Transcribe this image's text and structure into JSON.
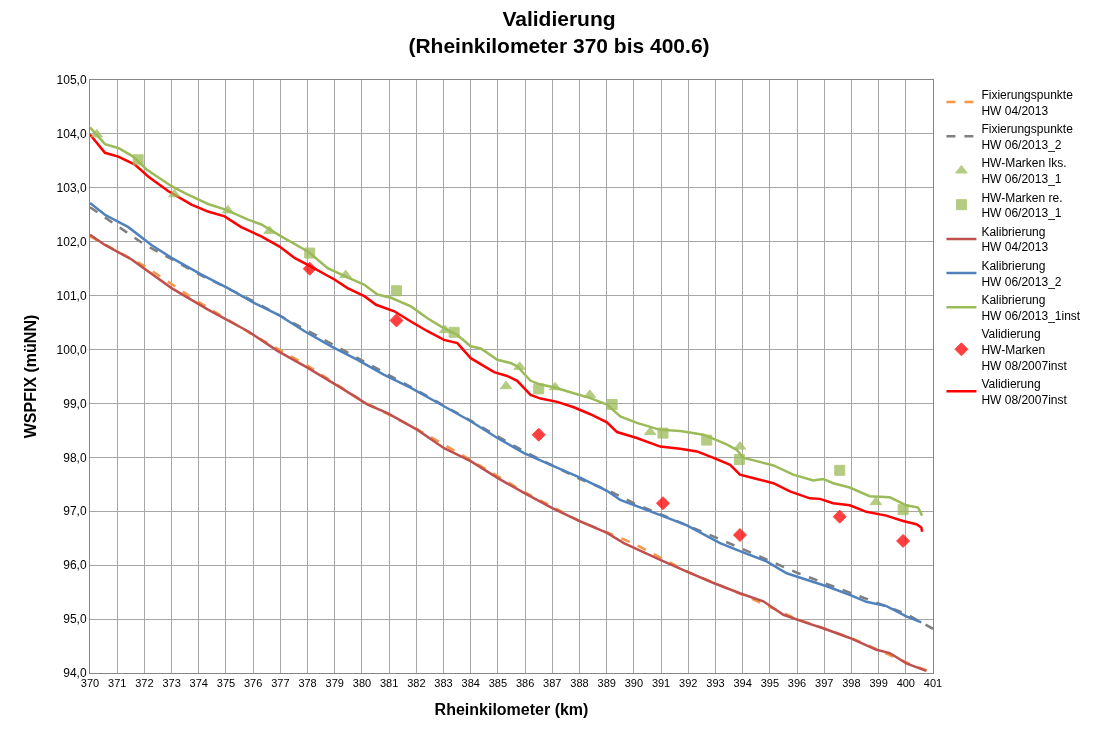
{
  "chart_data": {
    "type": "line",
    "title": "Validierung\n(Rheinkilometer 370 bis 400.6)",
    "xlabel": "Rheinkilometer (km)",
    "ylabel": "WSPFIX (müNN)",
    "xlim": [
      370,
      401
    ],
    "xticks": [
      370,
      371,
      372,
      373,
      374,
      375,
      376,
      377,
      378,
      379,
      380,
      381,
      382,
      383,
      384,
      385,
      386,
      387,
      388,
      389,
      390,
      391,
      392,
      393,
      394,
      395,
      396,
      397,
      398,
      399,
      400,
      401
    ],
    "ylim": [
      94,
      105
    ],
    "yticks": [
      {
        "value": 94,
        "label": "94,0"
      },
      {
        "value": 95,
        "label": "95,0"
      },
      {
        "value": 96,
        "label": "96,0"
      },
      {
        "value": 97,
        "label": "97,0"
      },
      {
        "value": 98,
        "label": "98,0"
      },
      {
        "value": 99,
        "label": "99,0"
      },
      {
        "value": 100,
        "label": "100,0"
      },
      {
        "value": 101,
        "label": "101,0"
      },
      {
        "value": 102,
        "label": "102,0"
      },
      {
        "value": 103,
        "label": "103,0"
      },
      {
        "value": 104,
        "label": "104,0"
      },
      {
        "value": 105,
        "label": "105,0"
      }
    ],
    "grid": true,
    "legend": "right",
    "series": [
      {
        "name": "Fixierungspunkte\nHW 04/2013",
        "line_style": "dashed",
        "color": "#f79646",
        "x": [
          370,
          372,
          374,
          375.9,
          378,
          380,
          382,
          384,
          386,
          388,
          390,
          392,
          394,
          396,
          398,
          400,
          400.8
        ],
        "values": [
          102.1,
          101.55,
          100.88,
          100.3,
          99.7,
          99.05,
          98.53,
          97.95,
          97.35,
          96.82,
          96.4,
          95.87,
          95.45,
          95.0,
          94.65,
          94.2,
          94.04
        ]
      },
      {
        "name": "Fixierungspunkte\nHW 06/2013_2",
        "line_style": "dashed",
        "color": "#7f7f7f",
        "x": [
          370,
          372,
          374,
          376,
          378,
          380,
          382,
          384,
          386,
          388,
          389,
          390,
          392,
          394,
          396,
          398,
          400,
          401
        ],
        "values": [
          102.64,
          101.95,
          101.4,
          100.9,
          100.35,
          99.8,
          99.25,
          98.68,
          98.1,
          97.6,
          97.4,
          97.15,
          96.73,
          96.3,
          95.86,
          95.48,
          95.1,
          94.82
        ]
      },
      {
        "name": "HW-Marken lks.\nHW 06/2013_1",
        "type": "scatter",
        "marker": "triangle",
        "color": "#9bbb59",
        "x": [
          370.25,
          373.1,
          375.07,
          376.6,
          379.4,
          383.06,
          385.3,
          385.8,
          387.1,
          388.38,
          390.6,
          393.9,
          398.9
        ],
        "values": [
          103.99,
          102.88,
          102.58,
          102.2,
          101.38,
          100.36,
          99.32,
          99.68,
          99.3,
          99.16,
          98.47,
          98.2,
          97.17
        ]
      },
      {
        "name": "HW-Marken re.\nHW 06/2013_1",
        "type": "scatter",
        "marker": "square",
        "color": "#9bbb59",
        "x": [
          371.77,
          378.08,
          381.27,
          383.39,
          386.5,
          389.2,
          391.07,
          392.68,
          393.88,
          397.57,
          399.9
        ],
        "values": [
          103.52,
          101.79,
          101.09,
          100.32,
          99.27,
          98.98,
          98.45,
          98.32,
          97.96,
          97.76,
          97.03
        ]
      },
      {
        "name": "Kalibrierung\nHW 04/2013",
        "line_style": "solid",
        "color": "#c0504d",
        "x": [
          370,
          370.55,
          371.53,
          373.0,
          374.34,
          375.81,
          376.91,
          378.01,
          379.23,
          380.21,
          380.94,
          382.04,
          383.02,
          384.0,
          384.98,
          385.96,
          387.0,
          388.04,
          389.01,
          389.63,
          390.97,
          391.95,
          392.93,
          393.9,
          394.76,
          395.5,
          396.35,
          396.96,
          397.94,
          398.92,
          399.41,
          400.02,
          400.75
        ],
        "values": [
          102.13,
          101.94,
          101.67,
          101.14,
          100.74,
          100.34,
          99.97,
          99.66,
          99.29,
          98.98,
          98.82,
          98.51,
          98.17,
          97.93,
          97.62,
          97.34,
          97.06,
          96.81,
          96.6,
          96.41,
          96.1,
          95.88,
          95.67,
          95.48,
          95.33,
          95.08,
          94.93,
          94.83,
          94.65,
          94.43,
          94.37,
          94.18,
          94.04
        ]
      },
      {
        "name": "Kalibrierung\nHW 06/2013_2",
        "line_style": "solid",
        "color": "#4f81bd",
        "x": [
          370,
          370.55,
          371.41,
          372.26,
          373.0,
          374.1,
          375.07,
          376.05,
          376.91,
          377.89,
          378.87,
          379.84,
          380.82,
          381.8,
          382.9,
          384.0,
          384.98,
          385.96,
          386.94,
          388.04,
          389.01,
          389.5,
          390.97,
          391.95,
          393.17,
          393.9,
          394.88,
          395.62,
          396.35,
          397.09,
          397.94,
          398.55,
          399.29,
          400.02,
          400.57
        ],
        "values": [
          102.72,
          102.5,
          102.27,
          101.94,
          101.7,
          101.39,
          101.14,
          100.86,
          100.65,
          100.34,
          100.06,
          99.81,
          99.53,
          99.29,
          98.98,
          98.67,
          98.36,
          98.08,
          97.86,
          97.62,
          97.38,
          97.21,
          96.93,
          96.74,
          96.41,
          96.26,
          96.07,
          95.85,
          95.73,
          95.61,
          95.45,
          95.32,
          95.24,
          95.05,
          94.94
        ]
      },
      {
        "name": "Kalibrierung\nHW 06/2013_1inst",
        "line_style": "solid",
        "color": "#9bbb59",
        "x": [
          370,
          370.55,
          371.04,
          371.59,
          372.08,
          373.0,
          373.49,
          374.34,
          375.01,
          375.81,
          376.3,
          377.03,
          378.01,
          378.74,
          379.47,
          380.09,
          380.57,
          381.07,
          381.8,
          382.41,
          382.9,
          383.51,
          384.0,
          384.37,
          384.98,
          385.47,
          385.71,
          386.2,
          386.57,
          387.06,
          387.79,
          388.4,
          389.01,
          389.5,
          390.11,
          390.97,
          391.7,
          392.56,
          393.41,
          393.78,
          394.03,
          394.52,
          395.13,
          395.86,
          396.6,
          396.96,
          397.33,
          397.94,
          398.67,
          399.41,
          400.02,
          400.45,
          400.6
        ],
        "values": [
          104.12,
          103.81,
          103.74,
          103.58,
          103.34,
          103.03,
          102.9,
          102.7,
          102.59,
          102.41,
          102.32,
          102.1,
          101.82,
          101.51,
          101.34,
          101.2,
          101.02,
          100.96,
          100.8,
          100.58,
          100.43,
          100.27,
          100.06,
          100.02,
          99.81,
          99.75,
          99.69,
          99.42,
          99.35,
          99.3,
          99.19,
          99.1,
          98.98,
          98.76,
          98.64,
          98.51,
          98.49,
          98.42,
          98.24,
          98.14,
          97.99,
          97.93,
          97.85,
          97.68,
          97.57,
          97.6,
          97.52,
          97.44,
          97.28,
          97.26,
          97.11,
          97.07,
          96.92
        ]
      },
      {
        "name": "Validierung\nHW-Marken\nHW 08/2007inst",
        "type": "scatter",
        "marker": "diamond",
        "color": "#ff0000",
        "x": [
          378.08,
          381.27,
          386.5,
          391.07,
          393.9,
          397.57,
          399.9
        ],
        "values": [
          101.5,
          100.54,
          98.42,
          97.15,
          96.56,
          96.9,
          96.45
        ]
      },
      {
        "name": "Validierung\nHW 08/2007inst",
        "line_style": "solid",
        "color": "#ff0000",
        "x": [
          370,
          370.55,
          371.04,
          371.65,
          372.14,
          372.87,
          373.73,
          374.34,
          374.95,
          375.56,
          376.3,
          376.97,
          377.52,
          378.01,
          378.99,
          379.47,
          380.09,
          380.52,
          381.19,
          381.8,
          382.41,
          383.02,
          383.51,
          384.0,
          384.86,
          385.34,
          385.71,
          386.2,
          386.57,
          387.18,
          387.79,
          388.4,
          389.01,
          389.38,
          390.11,
          390.97,
          391.7,
          392.32,
          392.93,
          393.54,
          393.9,
          394.52,
          395.13,
          395.74,
          396.47,
          396.84,
          397.33,
          397.94,
          398.55,
          399.28,
          399.9,
          400.39,
          400.57,
          400.6
        ],
        "values": [
          103.99,
          103.65,
          103.58,
          103.43,
          103.21,
          102.94,
          102.69,
          102.56,
          102.47,
          102.27,
          102.1,
          101.91,
          101.7,
          101.57,
          101.3,
          101.14,
          100.99,
          100.83,
          100.71,
          100.52,
          100.34,
          100.18,
          100.12,
          99.84,
          99.58,
          99.51,
          99.42,
          99.16,
          99.09,
          99.03,
          98.93,
          98.8,
          98.65,
          98.47,
          98.36,
          98.2,
          98.16,
          98.11,
          97.99,
          97.86,
          97.68,
          97.6,
          97.52,
          97.37,
          97.24,
          97.23,
          97.15,
          97.11,
          96.99,
          96.92,
          96.82,
          96.76,
          96.7,
          96.62
        ]
      }
    ]
  }
}
